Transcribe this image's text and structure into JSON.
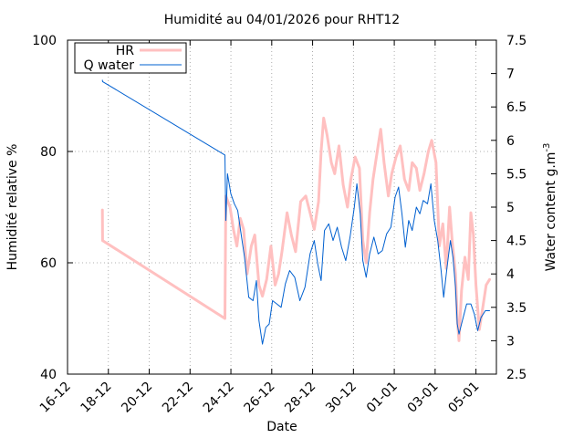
{
  "chart_data": {
    "type": "line",
    "title": "Humidité au 04/01/2026 pour RHT12",
    "xlabel": "Date",
    "ylabel": "Humidité relative %",
    "y2label": "Water content g.m",
    "y2label_superscript": "-3",
    "xlim": [
      "2025-12-16",
      "2026-01-06"
    ],
    "ylim": [
      40,
      100
    ],
    "y2lim": [
      2.5,
      7.5
    ],
    "grid": true,
    "legend_position": "top-left",
    "x_ticks": [
      "16-12",
      "18-12",
      "20-12",
      "22-12",
      "24-12",
      "26-12",
      "28-12",
      "30-12",
      "01-01",
      "03-01",
      "05-01"
    ],
    "x_tick_dates": [
      "2025-12-16",
      "2025-12-18",
      "2025-12-20",
      "2025-12-22",
      "2025-12-24",
      "2025-12-26",
      "2025-12-28",
      "2025-12-30",
      "2026-01-01",
      "2026-01-03",
      "2026-01-05"
    ],
    "y_ticks": [
      "40",
      "60",
      "80",
      "100"
    ],
    "y2_ticks": [
      "2.5",
      "3",
      "3.5",
      "4",
      "4.5",
      "5",
      "5.5",
      "6",
      "6.5",
      "7",
      "7.5"
    ],
    "series": [
      {
        "name": "HR",
        "axis": "left",
        "color": "#ffc0c0",
        "points": [
          [
            "2025-12-17 17:00",
            69.5
          ],
          [
            "2025-12-17 17:10",
            64
          ],
          [
            "2025-12-23 17:00",
            50
          ],
          [
            "2025-12-23 18:00",
            72
          ],
          [
            "2025-12-23 23:00",
            70
          ],
          [
            "2025-12-24 03:00",
            66
          ],
          [
            "2025-12-24 07:00",
            63
          ],
          [
            "2025-12-24 11:00",
            68
          ],
          [
            "2025-12-24 15:00",
            66
          ],
          [
            "2025-12-24 19:00",
            58
          ],
          [
            "2025-12-25 00:00",
            63
          ],
          [
            "2025-12-25 04:00",
            65
          ],
          [
            "2025-12-25 09:00",
            56
          ],
          [
            "2025-12-25 13:00",
            54
          ],
          [
            "2025-12-25 18:00",
            57
          ],
          [
            "2025-12-25 23:00",
            63
          ],
          [
            "2025-12-26 04:00",
            56
          ],
          [
            "2025-12-26 08:00",
            58
          ],
          [
            "2025-12-26 12:00",
            62
          ],
          [
            "2025-12-26 18:00",
            69
          ],
          [
            "2025-12-26 23:00",
            65
          ],
          [
            "2025-12-27 04:00",
            62
          ],
          [
            "2025-12-27 10:00",
            71
          ],
          [
            "2025-12-27 16:00",
            72
          ],
          [
            "2025-12-27 21:00",
            69
          ],
          [
            "2025-12-28 02:00",
            66
          ],
          [
            "2025-12-28 07:00",
            71
          ],
          [
            "2025-12-28 10:00",
            80
          ],
          [
            "2025-12-28 13:00",
            86
          ],
          [
            "2025-12-28 17:00",
            83
          ],
          [
            "2025-12-28 22:00",
            78
          ],
          [
            "2025-12-29 02:00",
            76
          ],
          [
            "2025-12-29 07:00",
            81
          ],
          [
            "2025-12-29 12:00",
            74
          ],
          [
            "2025-12-29 17:00",
            70
          ],
          [
            "2025-12-29 21:00",
            75
          ],
          [
            "2025-12-30 02:00",
            79
          ],
          [
            "2025-12-30 07:00",
            77
          ],
          [
            "2025-12-30 11:00",
            64
          ],
          [
            "2025-12-30 15:00",
            60
          ],
          [
            "2025-12-30 19:00",
            69
          ],
          [
            "2025-12-30 23:00",
            75
          ],
          [
            "2025-12-31 04:00",
            80
          ],
          [
            "2025-12-31 08:00",
            84
          ],
          [
            "2025-12-31 12:00",
            78
          ],
          [
            "2025-12-31 17:00",
            72
          ],
          [
            "2025-12-31 21:00",
            76
          ],
          [
            "2026-01-01 02:00",
            79
          ],
          [
            "2026-01-01 07:00",
            81
          ],
          [
            "2026-01-01 12:00",
            75
          ],
          [
            "2026-01-01 17:00",
            73
          ],
          [
            "2026-01-01 21:00",
            78
          ],
          [
            "2026-01-02 02:00",
            77
          ],
          [
            "2026-01-02 06:00",
            73
          ],
          [
            "2026-01-02 11:00",
            76
          ],
          [
            "2026-01-02 16:00",
            80
          ],
          [
            "2026-01-02 20:00",
            82
          ],
          [
            "2026-01-03 01:00",
            78
          ],
          [
            "2026-01-03 05:00",
            63
          ],
          [
            "2026-01-03 09:00",
            67
          ],
          [
            "2026-01-03 13:00",
            59
          ],
          [
            "2026-01-03 17:00",
            70
          ],
          [
            "2026-01-03 20:00",
            64
          ],
          [
            "2026-01-04 00:00",
            58
          ],
          [
            "2026-01-04 02:00",
            50
          ],
          [
            "2026-01-04 04:00",
            46
          ],
          [
            "2026-01-04 07:00",
            55
          ],
          [
            "2026-01-04 11:00",
            61
          ],
          [
            "2026-01-04 15:00",
            57
          ],
          [
            "2026-01-04 18:00",
            69
          ],
          [
            "2026-01-04 21:00",
            65
          ],
          [
            "2026-01-05 00:00",
            56
          ],
          [
            "2026-01-05 04:00",
            48
          ],
          [
            "2026-01-05 08:00",
            52
          ],
          [
            "2026-01-05 12:00",
            56
          ],
          [
            "2026-01-05 16:00",
            57
          ]
        ]
      },
      {
        "name": "Q water",
        "axis": "right",
        "color": "#0060d0",
        "points": [
          [
            "2025-12-17 17:00",
            6.9
          ],
          [
            "2025-12-17 17:10",
            6.88
          ],
          [
            "2025-12-23 17:00",
            5.78
          ],
          [
            "2025-12-23 18:00",
            4.8
          ],
          [
            "2025-12-23 20:00",
            5.5
          ],
          [
            "2025-12-24 00:00",
            5.2
          ],
          [
            "2025-12-24 04:00",
            5.05
          ],
          [
            "2025-12-24 08:00",
            4.95
          ],
          [
            "2025-12-24 12:00",
            4.6
          ],
          [
            "2025-12-24 16:00",
            4.25
          ],
          [
            "2025-12-24 21:00",
            3.65
          ],
          [
            "2025-12-25 02:00",
            3.6
          ],
          [
            "2025-12-25 06:00",
            3.9
          ],
          [
            "2025-12-25 09:00",
            3.3
          ],
          [
            "2025-12-25 13:00",
            2.95
          ],
          [
            "2025-12-25 17:00",
            3.2
          ],
          [
            "2025-12-25 21:00",
            3.25
          ],
          [
            "2025-12-26 01:00",
            3.6
          ],
          [
            "2025-12-26 06:00",
            3.55
          ],
          [
            "2025-12-26 11:00",
            3.5
          ],
          [
            "2025-12-26 16:00",
            3.85
          ],
          [
            "2025-12-26 21:00",
            4.05
          ],
          [
            "2025-12-27 03:00",
            3.95
          ],
          [
            "2025-12-27 09:00",
            3.6
          ],
          [
            "2025-12-27 15:00",
            3.8
          ],
          [
            "2025-12-27 21:00",
            4.3
          ],
          [
            "2025-12-28 02:00",
            4.5
          ],
          [
            "2025-12-28 06:00",
            4.15
          ],
          [
            "2025-12-28 10:00",
            3.9
          ],
          [
            "2025-12-28 14:00",
            4.65
          ],
          [
            "2025-12-28 19:00",
            4.75
          ],
          [
            "2025-12-29 00:00",
            4.5
          ],
          [
            "2025-12-29 05:00",
            4.7
          ],
          [
            "2025-12-29 10:00",
            4.4
          ],
          [
            "2025-12-29 15:00",
            4.2
          ],
          [
            "2025-12-29 20:00",
            4.55
          ],
          [
            "2025-12-30 01:00",
            5.0
          ],
          [
            "2025-12-30 04:00",
            5.35
          ],
          [
            "2025-12-30 08:00",
            4.9
          ],
          [
            "2025-12-30 11:00",
            4.2
          ],
          [
            "2025-12-30 15:00",
            3.95
          ],
          [
            "2025-12-30 19:00",
            4.3
          ],
          [
            "2025-12-31 00:00",
            4.55
          ],
          [
            "2025-12-31 05:00",
            4.3
          ],
          [
            "2025-12-31 10:00",
            4.35
          ],
          [
            "2025-12-31 15:00",
            4.6
          ],
          [
            "2025-12-31 20:00",
            4.7
          ],
          [
            "2026-01-01 01:00",
            5.15
          ],
          [
            "2026-01-01 05:00",
            5.3
          ],
          [
            "2026-01-01 09:00",
            4.9
          ],
          [
            "2026-01-01 13:00",
            4.4
          ],
          [
            "2026-01-01 17:00",
            4.8
          ],
          [
            "2026-01-01 21:00",
            4.65
          ],
          [
            "2026-01-02 02:00",
            5.0
          ],
          [
            "2026-01-02 06:00",
            4.9
          ],
          [
            "2026-01-02 10:00",
            5.1
          ],
          [
            "2026-01-02 15:00",
            5.05
          ],
          [
            "2026-01-02 19:00",
            5.35
          ],
          [
            "2026-01-02 23:00",
            4.8
          ],
          [
            "2026-01-03 03:00",
            4.5
          ],
          [
            "2026-01-03 07:00",
            4.05
          ],
          [
            "2026-01-03 10:00",
            3.65
          ],
          [
            "2026-01-03 14:00",
            4.1
          ],
          [
            "2026-01-03 18:00",
            4.5
          ],
          [
            "2026-01-03 21:00",
            4.25
          ],
          [
            "2026-01-04 00:00",
            3.8
          ],
          [
            "2026-01-04 02:00",
            3.25
          ],
          [
            "2026-01-04 04:00",
            3.1
          ],
          [
            "2026-01-04 08:00",
            3.3
          ],
          [
            "2026-01-04 13:00",
            3.55
          ],
          [
            "2026-01-04 18:00",
            3.55
          ],
          [
            "2026-01-04 22:00",
            3.4
          ],
          [
            "2026-01-05 02:00",
            3.15
          ],
          [
            "2026-01-05 06:00",
            3.35
          ],
          [
            "2026-01-05 11:00",
            3.45
          ],
          [
            "2026-01-05 16:00",
            3.45
          ]
        ]
      }
    ]
  }
}
